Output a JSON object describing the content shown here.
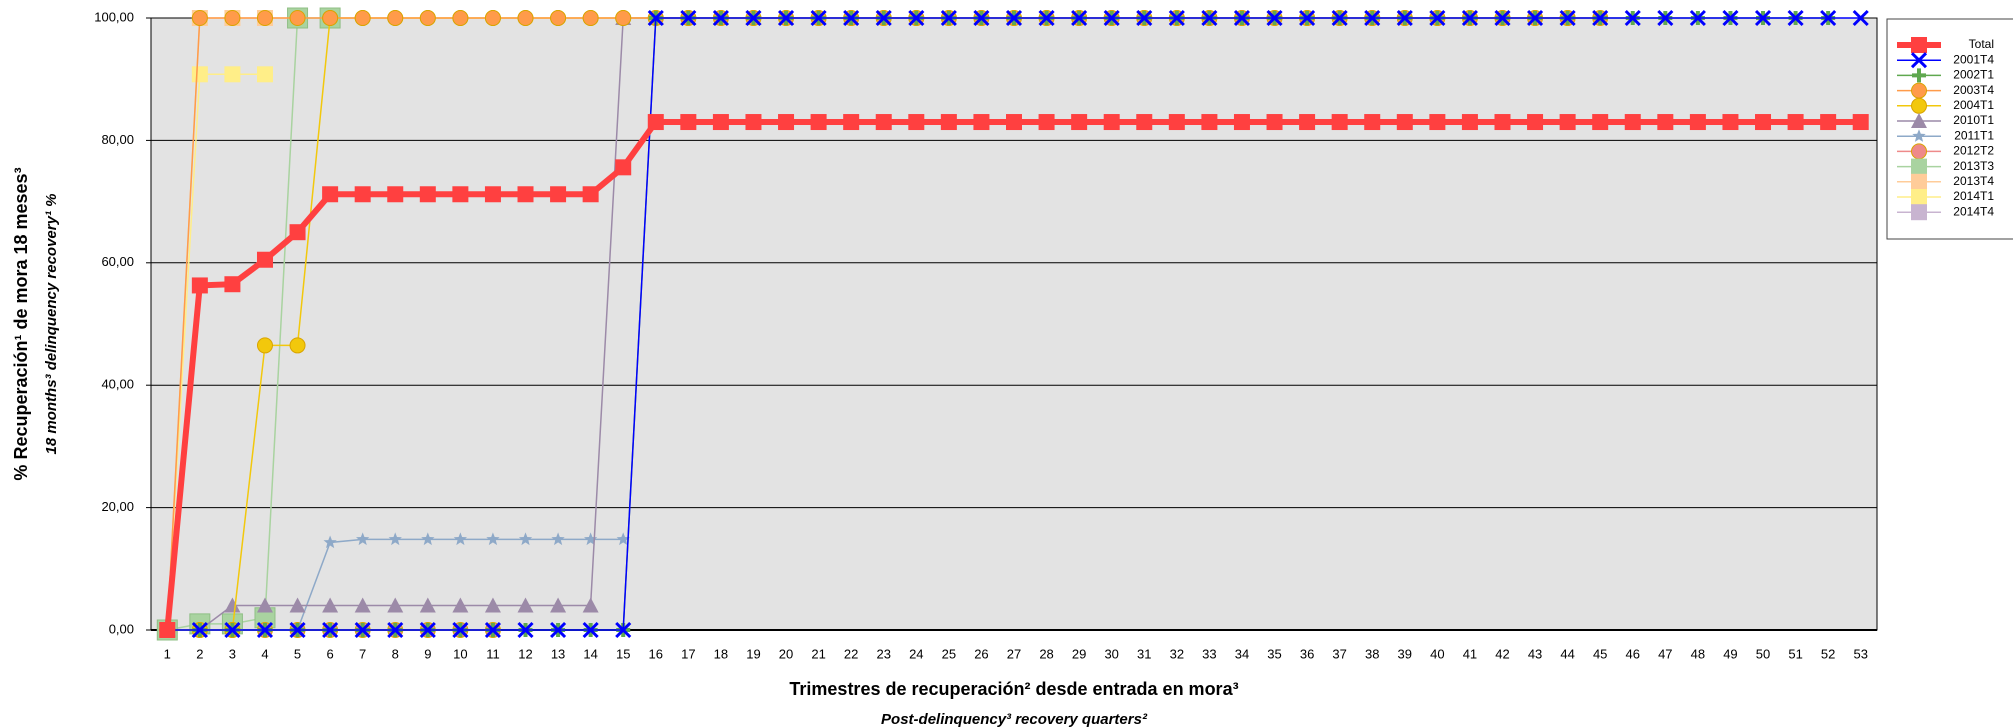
{
  "chart_data": {
    "type": "line",
    "y_label": "% Recuperación¹ de mora 18 meses³",
    "y_label_en": "18 months³ delinquency recovery¹ %",
    "x_label": "Trimestres de recuperación² desde entrada en mora³",
    "x_label_en": "Post-delinquency³ recovery quarters²",
    "categories": [
      "1",
      "2",
      "3",
      "4",
      "5",
      "6",
      "7",
      "8",
      "9",
      "10",
      "11",
      "12",
      "13",
      "14",
      "15",
      "16",
      "17",
      "18",
      "19",
      "20",
      "21",
      "22",
      "23",
      "24",
      "25",
      "26",
      "27",
      "28",
      "29",
      "30",
      "31",
      "32",
      "33",
      "34",
      "35",
      "36",
      "37",
      "38",
      "39",
      "40",
      "41",
      "42",
      "43",
      "44",
      "45",
      "46",
      "47",
      "48",
      "49",
      "50",
      "51",
      "52",
      "53"
    ],
    "ylim": [
      0,
      100
    ],
    "yticks": [
      {
        "value": 0,
        "label": "0,00"
      },
      {
        "value": 20,
        "label": "20,00"
      },
      {
        "value": 40,
        "label": "40,00"
      },
      {
        "value": 60,
        "label": "60,00"
      },
      {
        "value": 80,
        "label": "80,00"
      },
      {
        "value": 100,
        "label": "100,00"
      }
    ],
    "grid": true,
    "legend": "right",
    "series": [
      {
        "name": "Total",
        "color": "#ff4040",
        "marker": "square",
        "line_style": "bold",
        "values": [
          0,
          56.3,
          56.5,
          60.5,
          65,
          71.2,
          71.2,
          71.2,
          71.2,
          71.2,
          71.2,
          71.2,
          71.2,
          71.2,
          75.6,
          83,
          83,
          83,
          83,
          83,
          83,
          83,
          83,
          83,
          83,
          83,
          83,
          83,
          83,
          83,
          83,
          83,
          83,
          83,
          83,
          83,
          83,
          83,
          83,
          83,
          83,
          83,
          83,
          83,
          83,
          83,
          83,
          83,
          83,
          83,
          83,
          83,
          83
        ]
      },
      {
        "name": "2001T4",
        "color": "#0000ff",
        "marker": "x",
        "values": [
          0,
          0,
          0,
          0,
          0,
          0,
          0,
          0,
          0,
          0,
          0,
          0,
          0,
          0,
          0,
          100,
          100,
          100,
          100,
          100,
          100,
          100,
          100,
          100,
          100,
          100,
          100,
          100,
          100,
          100,
          100,
          100,
          100,
          100,
          100,
          100,
          100,
          100,
          100,
          100,
          100,
          100,
          100,
          100,
          100,
          100,
          100,
          100,
          100,
          100,
          100,
          100,
          100
        ]
      },
      {
        "name": "2002T1",
        "color": "#5fa84f",
        "marker": "plus",
        "values": [
          0,
          0,
          0,
          0,
          0,
          0,
          0,
          0,
          0,
          0,
          0,
          0,
          0,
          0,
          0,
          100,
          100,
          100,
          100,
          100,
          100,
          100,
          100,
          100,
          100,
          100,
          100,
          100,
          100,
          100,
          100,
          100,
          100,
          100,
          100,
          100,
          100,
          100,
          100,
          100,
          100,
          100,
          100,
          100,
          100,
          100,
          100,
          100,
          100,
          100,
          100,
          100,
          null
        ]
      },
      {
        "name": "2003T4",
        "color": "#ff9b4a",
        "marker": "circle",
        "values": [
          0,
          100,
          100,
          100,
          100,
          100,
          100,
          100,
          100,
          100,
          100,
          100,
          100,
          100,
          100,
          100,
          100,
          100,
          100,
          100,
          100,
          100,
          100,
          100,
          100,
          100,
          100,
          100,
          100,
          100,
          100,
          100,
          100,
          100,
          100,
          100,
          100,
          100,
          100,
          100,
          100,
          100,
          100,
          100,
          100,
          null,
          null,
          null,
          null,
          null,
          null,
          null,
          null
        ]
      },
      {
        "name": "2004T1",
        "color": "#f2c80c",
        "marker": "circle",
        "values": [
          0,
          0,
          0,
          46.5,
          46.5,
          100,
          100,
          100,
          100,
          100,
          100,
          100,
          100,
          100,
          100,
          100,
          100,
          100,
          100,
          100,
          100,
          100,
          100,
          100,
          100,
          100,
          100,
          100,
          100,
          100,
          100,
          100,
          100,
          100,
          100,
          100,
          100,
          100,
          100,
          100,
          100,
          100,
          100,
          100,
          null,
          null,
          null,
          null,
          null,
          null,
          null,
          null,
          null
        ]
      },
      {
        "name": "2010T1",
        "color": "#9c8aa8",
        "marker": "triangle",
        "values": [
          0,
          0,
          4,
          4,
          4,
          4,
          4,
          4,
          4,
          4,
          4,
          4,
          4,
          4,
          100,
          100,
          100,
          100,
          100,
          100,
          null,
          null,
          null,
          null,
          null,
          null,
          null,
          null,
          null,
          null,
          null,
          null,
          null,
          null,
          null,
          null,
          null,
          null,
          null,
          null,
          null,
          null,
          null,
          null,
          null,
          null,
          null,
          null,
          null,
          null,
          null,
          null,
          null
        ]
      },
      {
        "name": "2011T1",
        "color": "#8ea9c8",
        "marker": "star",
        "values": [
          0,
          0,
          0,
          0,
          0,
          14.3,
          14.8,
          14.8,
          14.8,
          14.8,
          14.8,
          14.8,
          14.8,
          14.8,
          14.8,
          null,
          null,
          null,
          null,
          null,
          null,
          null,
          null,
          null,
          null,
          null,
          null,
          null,
          null,
          null,
          null,
          null,
          null,
          null,
          null,
          null,
          null,
          null,
          null,
          null,
          null,
          null,
          null,
          null,
          null,
          null,
          null,
          null,
          null,
          null,
          null,
          null,
          null
        ]
      },
      {
        "name": "2012T2",
        "color": "#ee8a8a",
        "marker": "circle",
        "values": [
          0,
          0,
          0,
          0,
          0,
          0,
          0,
          0,
          0,
          0,
          0,
          null,
          null,
          null,
          null,
          null,
          null,
          null,
          null,
          null,
          null,
          null,
          null,
          null,
          null,
          null,
          null,
          null,
          null,
          null,
          null,
          null,
          null,
          null,
          null,
          null,
          null,
          null,
          null,
          null,
          null,
          null,
          null,
          null,
          null,
          null,
          null,
          null,
          null,
          null,
          null,
          null,
          null
        ]
      },
      {
        "name": "2013T3",
        "color": "#a9d3a0",
        "marker": "big-square",
        "values": [
          0,
          1,
          1,
          2,
          100,
          100,
          null,
          null,
          null,
          null,
          null,
          null,
          null,
          null,
          null,
          null,
          null,
          null,
          null,
          null,
          null,
          null,
          null,
          null,
          null,
          null,
          null,
          null,
          null,
          null,
          null,
          null,
          null,
          null,
          null,
          null,
          null,
          null,
          null,
          null,
          null,
          null,
          null,
          null,
          null,
          null,
          null,
          null,
          null,
          null,
          null,
          null,
          null
        ]
      },
      {
        "name": "2013T4",
        "color": "#ffcc99",
        "marker": "square",
        "values": [
          0,
          100,
          100,
          100,
          100,
          null,
          null,
          null,
          null,
          null,
          null,
          null,
          null,
          null,
          null,
          null,
          null,
          null,
          null,
          null,
          null,
          null,
          null,
          null,
          null,
          null,
          null,
          null,
          null,
          null,
          null,
          null,
          null,
          null,
          null,
          null,
          null,
          null,
          null,
          null,
          null,
          null,
          null,
          null,
          null,
          null,
          null,
          null,
          null,
          null,
          null,
          null,
          null
        ]
      },
      {
        "name": "2014T1",
        "color": "#ffee88",
        "marker": "square",
        "values": [
          0,
          90.8,
          90.8,
          90.8,
          null,
          null,
          null,
          null,
          null,
          null,
          null,
          null,
          null,
          null,
          null,
          null,
          null,
          null,
          null,
          null,
          null,
          null,
          null,
          null,
          null,
          null,
          null,
          null,
          null,
          null,
          null,
          null,
          null,
          null,
          null,
          null,
          null,
          null,
          null,
          null,
          null,
          null,
          null,
          null,
          null,
          null,
          null,
          null,
          null,
          null,
          null,
          null,
          null
        ]
      },
      {
        "name": "2014T4",
        "color": "#c8b4d0",
        "marker": "square",
        "values": [
          0,
          null,
          null,
          null,
          null,
          null,
          null,
          null,
          null,
          null,
          null,
          null,
          null,
          null,
          null,
          null,
          null,
          null,
          null,
          null,
          null,
          null,
          null,
          null,
          null,
          null,
          null,
          null,
          null,
          null,
          null,
          null,
          null,
          null,
          null,
          null,
          null,
          null,
          null,
          null,
          null,
          null,
          null,
          null,
          null,
          null,
          null,
          null,
          null,
          null,
          null,
          null,
          null
        ]
      }
    ]
  }
}
